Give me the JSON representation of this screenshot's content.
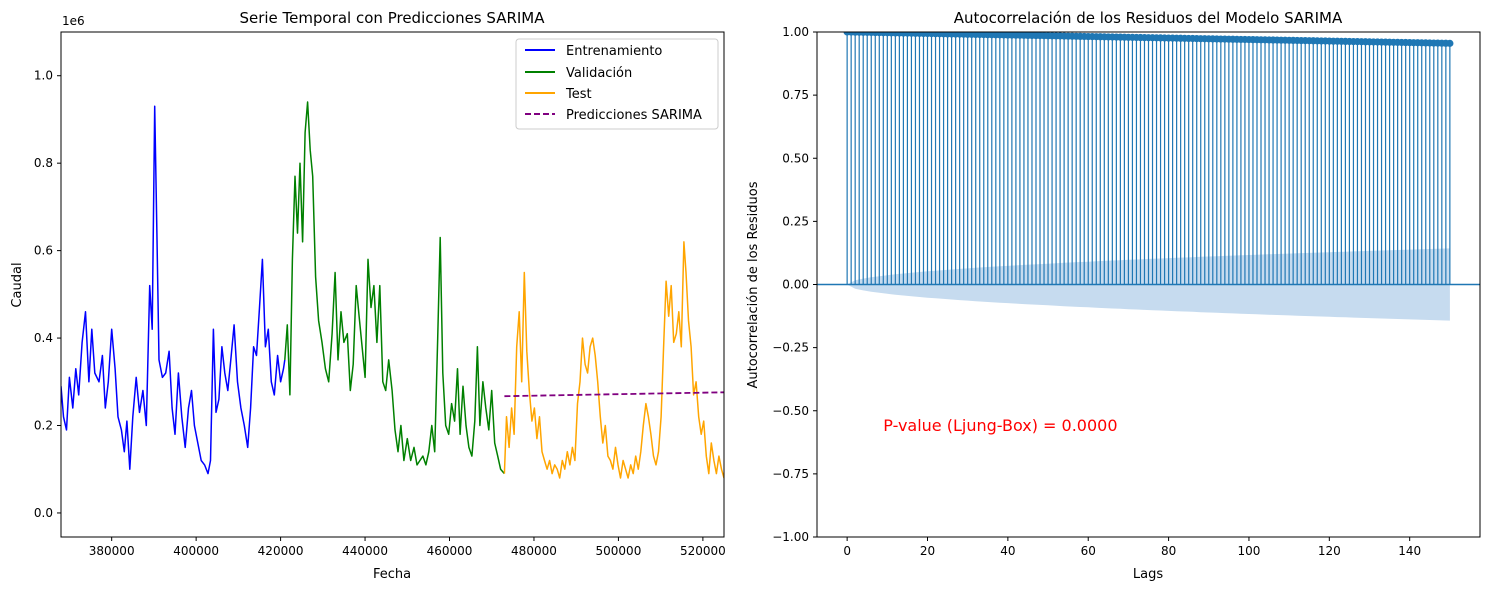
{
  "chart_data": [
    {
      "type": "line",
      "title": "Serie Temporal con Predicciones SARIMA",
      "xlabel": "Fecha",
      "ylabel": "Caudal",
      "y_offset_label": "1e6",
      "xlim": [
        368000,
        525000
      ],
      "ylim": [
        -0.055,
        1.1
      ],
      "x_ticks": [
        380000,
        400000,
        420000,
        440000,
        460000,
        480000,
        500000,
        520000
      ],
      "x_tick_labels": [
        "380000",
        "400000",
        "420000",
        "440000",
        "460000",
        "480000",
        "500000",
        "520000"
      ],
      "y_ticks": [
        0.0,
        0.2,
        0.4,
        0.6,
        0.8,
        1.0
      ],
      "y_tick_labels": [
        "0.0",
        "0.2",
        "0.4",
        "0.6",
        "0.8",
        "1.0"
      ],
      "grid": false,
      "legend_position": "top-right",
      "series": [
        {
          "name": "Entrenamiento",
          "color": "#0000ff",
          "style": "solid",
          "points": [
            [
              368000,
              0.29
            ],
            [
              368600,
              0.22
            ],
            [
              369300,
              0.19
            ],
            [
              370000,
              0.31
            ],
            [
              370800,
              0.24
            ],
            [
              371500,
              0.33
            ],
            [
              372200,
              0.27
            ],
            [
              373000,
              0.39
            ],
            [
              373800,
              0.46
            ],
            [
              374600,
              0.3
            ],
            [
              375300,
              0.42
            ],
            [
              376000,
              0.32
            ],
            [
              377000,
              0.3
            ],
            [
              377800,
              0.36
            ],
            [
              378500,
              0.24
            ],
            [
              379200,
              0.3
            ],
            [
              380000,
              0.42
            ],
            [
              380800,
              0.33
            ],
            [
              381500,
              0.22
            ],
            [
              382300,
              0.19
            ],
            [
              383000,
              0.14
            ],
            [
              383600,
              0.21
            ],
            [
              384300,
              0.1
            ],
            [
              385000,
              0.22
            ],
            [
              385800,
              0.31
            ],
            [
              386600,
              0.23
            ],
            [
              387400,
              0.28
            ],
            [
              388200,
              0.2
            ],
            [
              389000,
              0.52
            ],
            [
              389600,
              0.42
            ],
            [
              390200,
              0.93
            ],
            [
              390700,
              0.64
            ],
            [
              391200,
              0.35
            ],
            [
              392000,
              0.31
            ],
            [
              392800,
              0.32
            ],
            [
              393600,
              0.37
            ],
            [
              394300,
              0.24
            ],
            [
              395000,
              0.18
            ],
            [
              395800,
              0.32
            ],
            [
              396600,
              0.22
            ],
            [
              397400,
              0.15
            ],
            [
              398200,
              0.24
            ],
            [
              398900,
              0.28
            ],
            [
              399600,
              0.2
            ],
            [
              400400,
              0.16
            ],
            [
              401200,
              0.12
            ],
            [
              402000,
              0.11
            ],
            [
              402800,
              0.09
            ],
            [
              403400,
              0.12
            ],
            [
              404100,
              0.42
            ],
            [
              404700,
              0.23
            ],
            [
              405400,
              0.26
            ],
            [
              406100,
              0.38
            ],
            [
              406800,
              0.32
            ],
            [
              407500,
              0.28
            ],
            [
              408200,
              0.35
            ],
            [
              409000,
              0.43
            ],
            [
              409800,
              0.3
            ],
            [
              410600,
              0.24
            ],
            [
              411400,
              0.2
            ],
            [
              412200,
              0.15
            ],
            [
              412900,
              0.24
            ],
            [
              413600,
              0.38
            ],
            [
              414300,
              0.36
            ],
            [
              415000,
              0.47
            ],
            [
              415700,
              0.58
            ],
            [
              416400,
              0.38
            ],
            [
              417100,
              0.42
            ],
            [
              417800,
              0.3
            ],
            [
              418500,
              0.27
            ],
            [
              419300,
              0.36
            ],
            [
              420000,
              0.3
            ],
            [
              420700,
              0.33
            ],
            [
              421000,
              0.35
            ]
          ]
        },
        {
          "name": "Validación",
          "color": "#008000",
          "style": "solid",
          "points": [
            [
              421000,
              0.35
            ],
            [
              421600,
              0.43
            ],
            [
              422200,
              0.27
            ],
            [
              422800,
              0.58
            ],
            [
              423400,
              0.77
            ],
            [
              424000,
              0.64
            ],
            [
              424600,
              0.8
            ],
            [
              425200,
              0.62
            ],
            [
              425800,
              0.87
            ],
            [
              426400,
              0.94
            ],
            [
              427000,
              0.83
            ],
            [
              427600,
              0.77
            ],
            [
              428300,
              0.54
            ],
            [
              429000,
              0.44
            ],
            [
              429800,
              0.39
            ],
            [
              430600,
              0.33
            ],
            [
              431400,
              0.3
            ],
            [
              432200,
              0.41
            ],
            [
              432900,
              0.55
            ],
            [
              433600,
              0.35
            ],
            [
              434300,
              0.46
            ],
            [
              435000,
              0.39
            ],
            [
              435800,
              0.41
            ],
            [
              436500,
              0.28
            ],
            [
              437200,
              0.34
            ],
            [
              437900,
              0.52
            ],
            [
              438600,
              0.45
            ],
            [
              439300,
              0.38
            ],
            [
              440000,
              0.31
            ],
            [
              440700,
              0.58
            ],
            [
              441400,
              0.47
            ],
            [
              442100,
              0.52
            ],
            [
              442800,
              0.39
            ],
            [
              443500,
              0.52
            ],
            [
              444200,
              0.3
            ],
            [
              444900,
              0.28
            ],
            [
              445600,
              0.35
            ],
            [
              446400,
              0.28
            ],
            [
              447100,
              0.19
            ],
            [
              447800,
              0.14
            ],
            [
              448500,
              0.2
            ],
            [
              449200,
              0.12
            ],
            [
              450000,
              0.17
            ],
            [
              450800,
              0.12
            ],
            [
              451600,
              0.15
            ],
            [
              452300,
              0.11
            ],
            [
              453000,
              0.12
            ],
            [
              453700,
              0.13
            ],
            [
              454400,
              0.11
            ],
            [
              455100,
              0.14
            ],
            [
              455800,
              0.2
            ],
            [
              456500,
              0.14
            ],
            [
              457200,
              0.4
            ],
            [
              457800,
              0.63
            ],
            [
              458400,
              0.32
            ],
            [
              459100,
              0.2
            ],
            [
              459800,
              0.18
            ],
            [
              460500,
              0.25
            ],
            [
              461200,
              0.21
            ],
            [
              461900,
              0.33
            ],
            [
              462500,
              0.18
            ],
            [
              463200,
              0.29
            ],
            [
              463900,
              0.2
            ],
            [
              464600,
              0.15
            ],
            [
              465300,
              0.13
            ],
            [
              466000,
              0.21
            ],
            [
              466600,
              0.38
            ],
            [
              467200,
              0.2
            ],
            [
              467900,
              0.3
            ],
            [
              468600,
              0.24
            ],
            [
              469300,
              0.19
            ],
            [
              470000,
              0.28
            ],
            [
              470700,
              0.16
            ],
            [
              471400,
              0.13
            ],
            [
              472100,
              0.1
            ],
            [
              473000,
              0.09
            ]
          ]
        },
        {
          "name": "Test",
          "color": "#ffa500",
          "style": "solid",
          "points": [
            [
              473000,
              0.09
            ],
            [
              473500,
              0.22
            ],
            [
              474100,
              0.15
            ],
            [
              474700,
              0.24
            ],
            [
              475300,
              0.18
            ],
            [
              475900,
              0.38
            ],
            [
              476500,
              0.46
            ],
            [
              477100,
              0.3
            ],
            [
              477700,
              0.55
            ],
            [
              478300,
              0.37
            ],
            [
              478900,
              0.28
            ],
            [
              479500,
              0.21
            ],
            [
              480100,
              0.24
            ],
            [
              480700,
              0.17
            ],
            [
              481300,
              0.22
            ],
            [
              481900,
              0.14
            ],
            [
              482500,
              0.12
            ],
            [
              483100,
              0.1
            ],
            [
              483700,
              0.12
            ],
            [
              484300,
              0.09
            ],
            [
              484900,
              0.11
            ],
            [
              485500,
              0.1
            ],
            [
              486100,
              0.08
            ],
            [
              486700,
              0.12
            ],
            [
              487300,
              0.1
            ],
            [
              487900,
              0.14
            ],
            [
              488500,
              0.11
            ],
            [
              489100,
              0.15
            ],
            [
              489700,
              0.12
            ],
            [
              490300,
              0.25
            ],
            [
              490900,
              0.3
            ],
            [
              491500,
              0.4
            ],
            [
              492100,
              0.34
            ],
            [
              492700,
              0.32
            ],
            [
              493300,
              0.38
            ],
            [
              493900,
              0.4
            ],
            [
              494500,
              0.36
            ],
            [
              495100,
              0.3
            ],
            [
              495700,
              0.22
            ],
            [
              496300,
              0.16
            ],
            [
              496900,
              0.2
            ],
            [
              497500,
              0.13
            ],
            [
              498100,
              0.12
            ],
            [
              498700,
              0.1
            ],
            [
              499300,
              0.15
            ],
            [
              499900,
              0.11
            ],
            [
              500500,
              0.08
            ],
            [
              501100,
              0.12
            ],
            [
              501700,
              0.1
            ],
            [
              502300,
              0.08
            ],
            [
              502900,
              0.11
            ],
            [
              503500,
              0.09
            ],
            [
              504100,
              0.13
            ],
            [
              504700,
              0.1
            ],
            [
              505300,
              0.14
            ],
            [
              505900,
              0.2
            ],
            [
              506500,
              0.25
            ],
            [
              507100,
              0.22
            ],
            [
              507700,
              0.18
            ],
            [
              508300,
              0.13
            ],
            [
              508900,
              0.11
            ],
            [
              509500,
              0.14
            ],
            [
              510100,
              0.22
            ],
            [
              510700,
              0.38
            ],
            [
              511300,
              0.53
            ],
            [
              511900,
              0.45
            ],
            [
              512500,
              0.52
            ],
            [
              513100,
              0.39
            ],
            [
              513700,
              0.41
            ],
            [
              514300,
              0.46
            ],
            [
              514900,
              0.38
            ],
            [
              515500,
              0.62
            ],
            [
              516000,
              0.55
            ],
            [
              516600,
              0.44
            ],
            [
              517200,
              0.38
            ],
            [
              517800,
              0.27
            ],
            [
              518400,
              0.3
            ],
            [
              519000,
              0.22
            ],
            [
              519600,
              0.18
            ],
            [
              520200,
              0.21
            ],
            [
              520800,
              0.13
            ],
            [
              521400,
              0.09
            ],
            [
              522000,
              0.16
            ],
            [
              522600,
              0.12
            ],
            [
              523200,
              0.09
            ],
            [
              523800,
              0.13
            ],
            [
              524400,
              0.1
            ],
            [
              525000,
              0.08
            ]
          ]
        },
        {
          "name": "Predicciones SARIMA",
          "color": "#800080",
          "style": "dashed",
          "points": [
            [
              473000,
              0.267
            ],
            [
              525000,
              0.276
            ]
          ]
        }
      ]
    },
    {
      "type": "stem",
      "title": "Autocorrelación de los Residuos del Modelo SARIMA",
      "xlabel": "Lags",
      "ylabel": "Autocorrelación de los Residuos",
      "xlim": [
        -7.5,
        157.5
      ],
      "ylim": [
        -1.0,
        1.0
      ],
      "x_ticks": [
        0,
        20,
        40,
        60,
        80,
        100,
        120,
        140
      ],
      "x_tick_labels": [
        "0",
        "20",
        "40",
        "60",
        "80",
        "100",
        "120",
        "140"
      ],
      "y_ticks": [
        -1.0,
        -0.75,
        -0.5,
        -0.25,
        0.0,
        0.25,
        0.5,
        0.75,
        1.0
      ],
      "y_tick_labels": [
        "−1.00",
        "−0.75",
        "−0.50",
        "−0.25",
        "0.00",
        "0.25",
        "0.50",
        "0.75",
        "1.00"
      ],
      "grid": false,
      "color": "#1f77b4",
      "lags": {
        "start": 0,
        "end": 150,
        "acf_first": 1.0,
        "acf_last": 0.955
      },
      "confidence_band": {
        "color": "#c6dbef",
        "lag_start": 0,
        "lag_end": 150,
        "bound_start": 0.0,
        "bound_end": 0.143
      },
      "annotation": {
        "text": "P-value (Ljung-Box) = 0.0000",
        "color": "#ff0000",
        "x": 9,
        "y": -0.58
      }
    }
  ]
}
